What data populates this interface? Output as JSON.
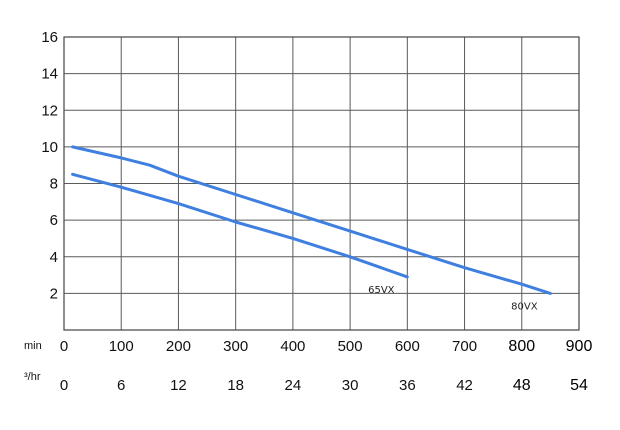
{
  "chart_data": {
    "type": "line",
    "title": "",
    "xlabel": "",
    "ylabel": "",
    "xlim": [
      0,
      900
    ],
    "ylim": [
      0,
      16
    ],
    "grid": true,
    "y_ticks": [
      "2",
      "4",
      "6",
      "8",
      "10",
      "12",
      "14",
      "16"
    ],
    "x_ticks_primary": [
      "0",
      "100",
      "200",
      "300",
      "400",
      "500",
      "600",
      "700",
      "800",
      "900"
    ],
    "x_ticks_secondary": [
      "0",
      "6",
      "12",
      "18",
      "24",
      "30",
      "36",
      "42",
      "48",
      "54"
    ],
    "x_unit_primary": "min",
    "x_unit_secondary": "³/hr",
    "line_color": "#3e7fe0",
    "series": [
      {
        "name": "65VX",
        "points": [
          [
            15,
            8.5
          ],
          [
            100,
            7.8
          ],
          [
            200,
            6.9
          ],
          [
            300,
            5.9
          ],
          [
            400,
            5.0
          ],
          [
            500,
            4.0
          ],
          [
            600,
            2.9
          ]
        ]
      },
      {
        "name": "80VX",
        "points": [
          [
            15,
            10.0
          ],
          [
            100,
            9.4
          ],
          [
            150,
            9.0
          ],
          [
            200,
            8.4
          ],
          [
            300,
            7.4
          ],
          [
            400,
            6.4
          ],
          [
            500,
            5.4
          ],
          [
            600,
            4.4
          ],
          [
            700,
            3.4
          ],
          [
            800,
            2.5
          ],
          [
            850,
            2.0
          ]
        ]
      }
    ]
  }
}
